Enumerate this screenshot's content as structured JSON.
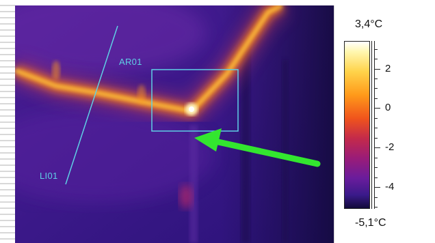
{
  "image": {
    "description_labels": {
      "ar_label": "AR01",
      "li_label": "LI01"
    },
    "arrow_color": "#33e62f",
    "annotation_color": "#5fd0e6"
  },
  "scale": {
    "max_label": "3,4°C",
    "min_label": "-5,1°C",
    "ticks": [
      {
        "value": 2,
        "label": "2"
      },
      {
        "value": 0,
        "label": "0"
      },
      {
        "value": -2,
        "label": "-2"
      },
      {
        "value": -4,
        "label": "-4"
      }
    ],
    "max_value": 3.4,
    "min_value": -5.1
  }
}
